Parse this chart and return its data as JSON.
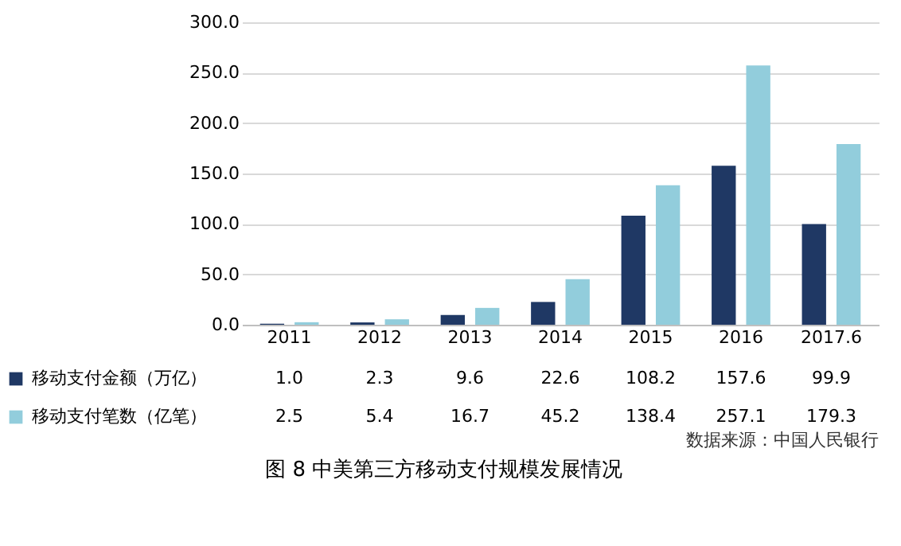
{
  "chart_data": {
    "type": "bar",
    "title": "图 8   中美第三方移动支付规模发展情况",
    "categories": [
      "2011",
      "2012",
      "2013",
      "2014",
      "2015",
      "2016",
      "2017.6"
    ],
    "series": [
      {
        "name": "移动支付金额（万亿）",
        "color": "#1f3864",
        "values": [
          1.0,
          2.3,
          9.6,
          22.6,
          108.2,
          157.6,
          99.9
        ],
        "value_labels": [
          "1.0",
          "2.3",
          "9.6",
          "22.6",
          "108.2",
          "157.6",
          "99.9"
        ]
      },
      {
        "name": "移动支付笔数（亿笔）",
        "color": "#92cddc",
        "values": [
          2.5,
          5.4,
          16.7,
          45.2,
          138.4,
          257.1,
          179.3
        ],
        "value_labels": [
          "2.5",
          "5.4",
          "16.7",
          "45.2",
          "138.4",
          "257.1",
          "179.3"
        ]
      }
    ],
    "ylim": [
      0,
      300
    ],
    "yticks": [
      {
        "value": 0,
        "label": "0.0"
      },
      {
        "value": 50,
        "label": "50.0"
      },
      {
        "value": 100,
        "label": "100.0"
      },
      {
        "value": 150,
        "label": "150.0"
      },
      {
        "value": 200,
        "label": "200.0"
      },
      {
        "value": 250,
        "label": "250.0"
      },
      {
        "value": 300,
        "label": "300.0"
      }
    ],
    "grid": "y",
    "legend": "bottom left",
    "annotations": [
      "数据来源：中国人民银行"
    ]
  }
}
